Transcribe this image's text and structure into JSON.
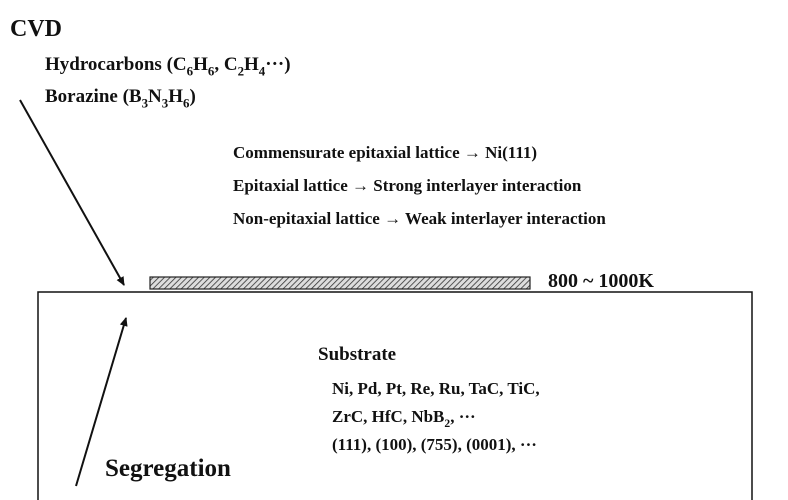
{
  "title": "CVD",
  "sources": [
    [
      "Hydrocarbons (C",
      {
        "sub": "6"
      },
      "H",
      {
        "sub": "6"
      },
      ", C",
      {
        "sub": "2"
      },
      "H",
      {
        "sub": "4"
      },
      "···)"
    ],
    [
      "Borazine (B",
      {
        "sub": "3"
      },
      "N",
      {
        "sub": "3"
      },
      "H",
      {
        "sub": "6"
      },
      ")"
    ]
  ],
  "lattice_notes": [
    "Commensurate epitaxial lattice → Ni(111)",
    "Epitaxial lattice → Strong interlayer interaction",
    "Non-epitaxial lattice → Weak interlayer interaction"
  ],
  "temperature": "800 ~ 1000K",
  "substrate": {
    "label": "Substrate",
    "materials": [
      [
        "Ni, Pd, Pt, Re, Ru, TaC, TiC,"
      ],
      [
        "ZrC, HfC, NbB",
        {
          "sub": "2"
        },
        ", ···"
      ]
    ],
    "facets": "(111), (100), (755), (0001), ···"
  },
  "process": "Segregation"
}
